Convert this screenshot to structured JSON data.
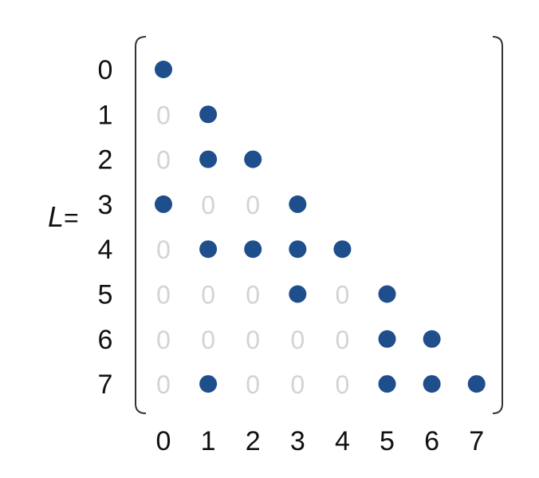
{
  "matrix": {
    "name": "L",
    "equals": "=",
    "row_labels": [
      "0",
      "1",
      "2",
      "3",
      "4",
      "5",
      "6",
      "7"
    ],
    "col_labels": [
      "0",
      "1",
      "2",
      "3",
      "4",
      "5",
      "6",
      "7"
    ],
    "zero_symbol": "0",
    "nonzero_symbol": "dot",
    "pattern": [
      [
        1,
        null,
        null,
        null,
        null,
        null,
        null,
        null
      ],
      [
        0,
        1,
        null,
        null,
        null,
        null,
        null,
        null
      ],
      [
        0,
        1,
        1,
        null,
        null,
        null,
        null,
        null
      ],
      [
        1,
        0,
        0,
        1,
        null,
        null,
        null,
        null
      ],
      [
        0,
        1,
        1,
        1,
        1,
        null,
        null,
        null
      ],
      [
        0,
        0,
        0,
        1,
        0,
        1,
        null,
        null
      ],
      [
        0,
        0,
        0,
        0,
        0,
        1,
        1,
        null
      ],
      [
        0,
        1,
        0,
        0,
        0,
        1,
        1,
        1
      ]
    ],
    "colors": {
      "dot": "#1f4e8c",
      "zero": "#d3d3d3",
      "label": "#111111",
      "bracket": "#333333"
    }
  }
}
